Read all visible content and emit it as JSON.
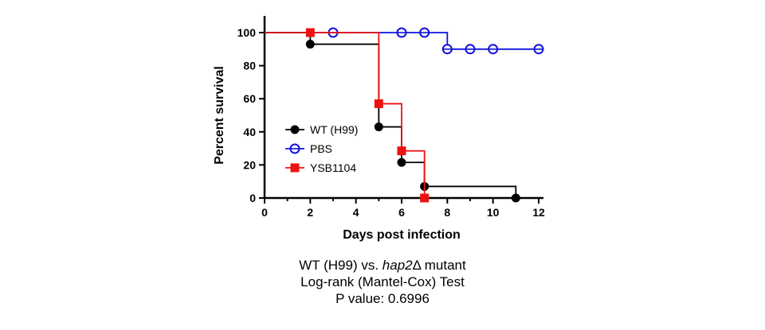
{
  "chart_data": {
    "type": "line",
    "subtype": "kaplan-meier survival (step)",
    "xlabel": "Days post infection",
    "ylabel": "Percent survival",
    "xlim": [
      0,
      12
    ],
    "ylim": [
      0,
      100
    ],
    "x_ticks": [
      0,
      2,
      4,
      6,
      8,
      10,
      12
    ],
    "y_ticks": [
      0,
      20,
      40,
      60,
      80,
      100
    ],
    "grid": false,
    "legend_position": "center-left",
    "series": [
      {
        "name": "WT (H99)",
        "color": "#000000",
        "marker": "filled-circle",
        "steps": [
          [
            0,
            100
          ],
          [
            2,
            93
          ],
          [
            5,
            43
          ],
          [
            6,
            21.5
          ],
          [
            7,
            7
          ],
          [
            11,
            0
          ]
        ],
        "markers": [
          [
            2,
            93
          ],
          [
            5,
            43
          ],
          [
            6,
            21.5
          ],
          [
            7,
            7
          ],
          [
            11,
            0
          ]
        ]
      },
      {
        "name": "PBS",
        "color": "#1010dd",
        "marker": "open-circle-cross",
        "steps": [
          [
            0,
            100
          ],
          [
            8,
            90
          ],
          [
            12,
            90
          ]
        ],
        "markers": [
          [
            3,
            100
          ],
          [
            6,
            100
          ],
          [
            7,
            100
          ],
          [
            8,
            90
          ],
          [
            9,
            90
          ],
          [
            10,
            90
          ],
          [
            12,
            90
          ]
        ]
      },
      {
        "name": "YSB1104",
        "color": "#ee1111",
        "marker": "filled-square",
        "steps": [
          [
            0,
            100
          ],
          [
            5,
            57
          ],
          [
            6,
            28.5
          ],
          [
            7,
            0
          ]
        ],
        "markers": [
          [
            2,
            100
          ],
          [
            5,
            57
          ],
          [
            6,
            28.5
          ],
          [
            7,
            0
          ]
        ]
      }
    ]
  },
  "caption": {
    "line1_prefix": "WT (H99) vs. ",
    "line1_gene": "hap2",
    "line1_suffix": "Δ mutant",
    "line2": "Log-rank (Mantel-Cox) Test",
    "line3": "P value: 0.6996"
  }
}
